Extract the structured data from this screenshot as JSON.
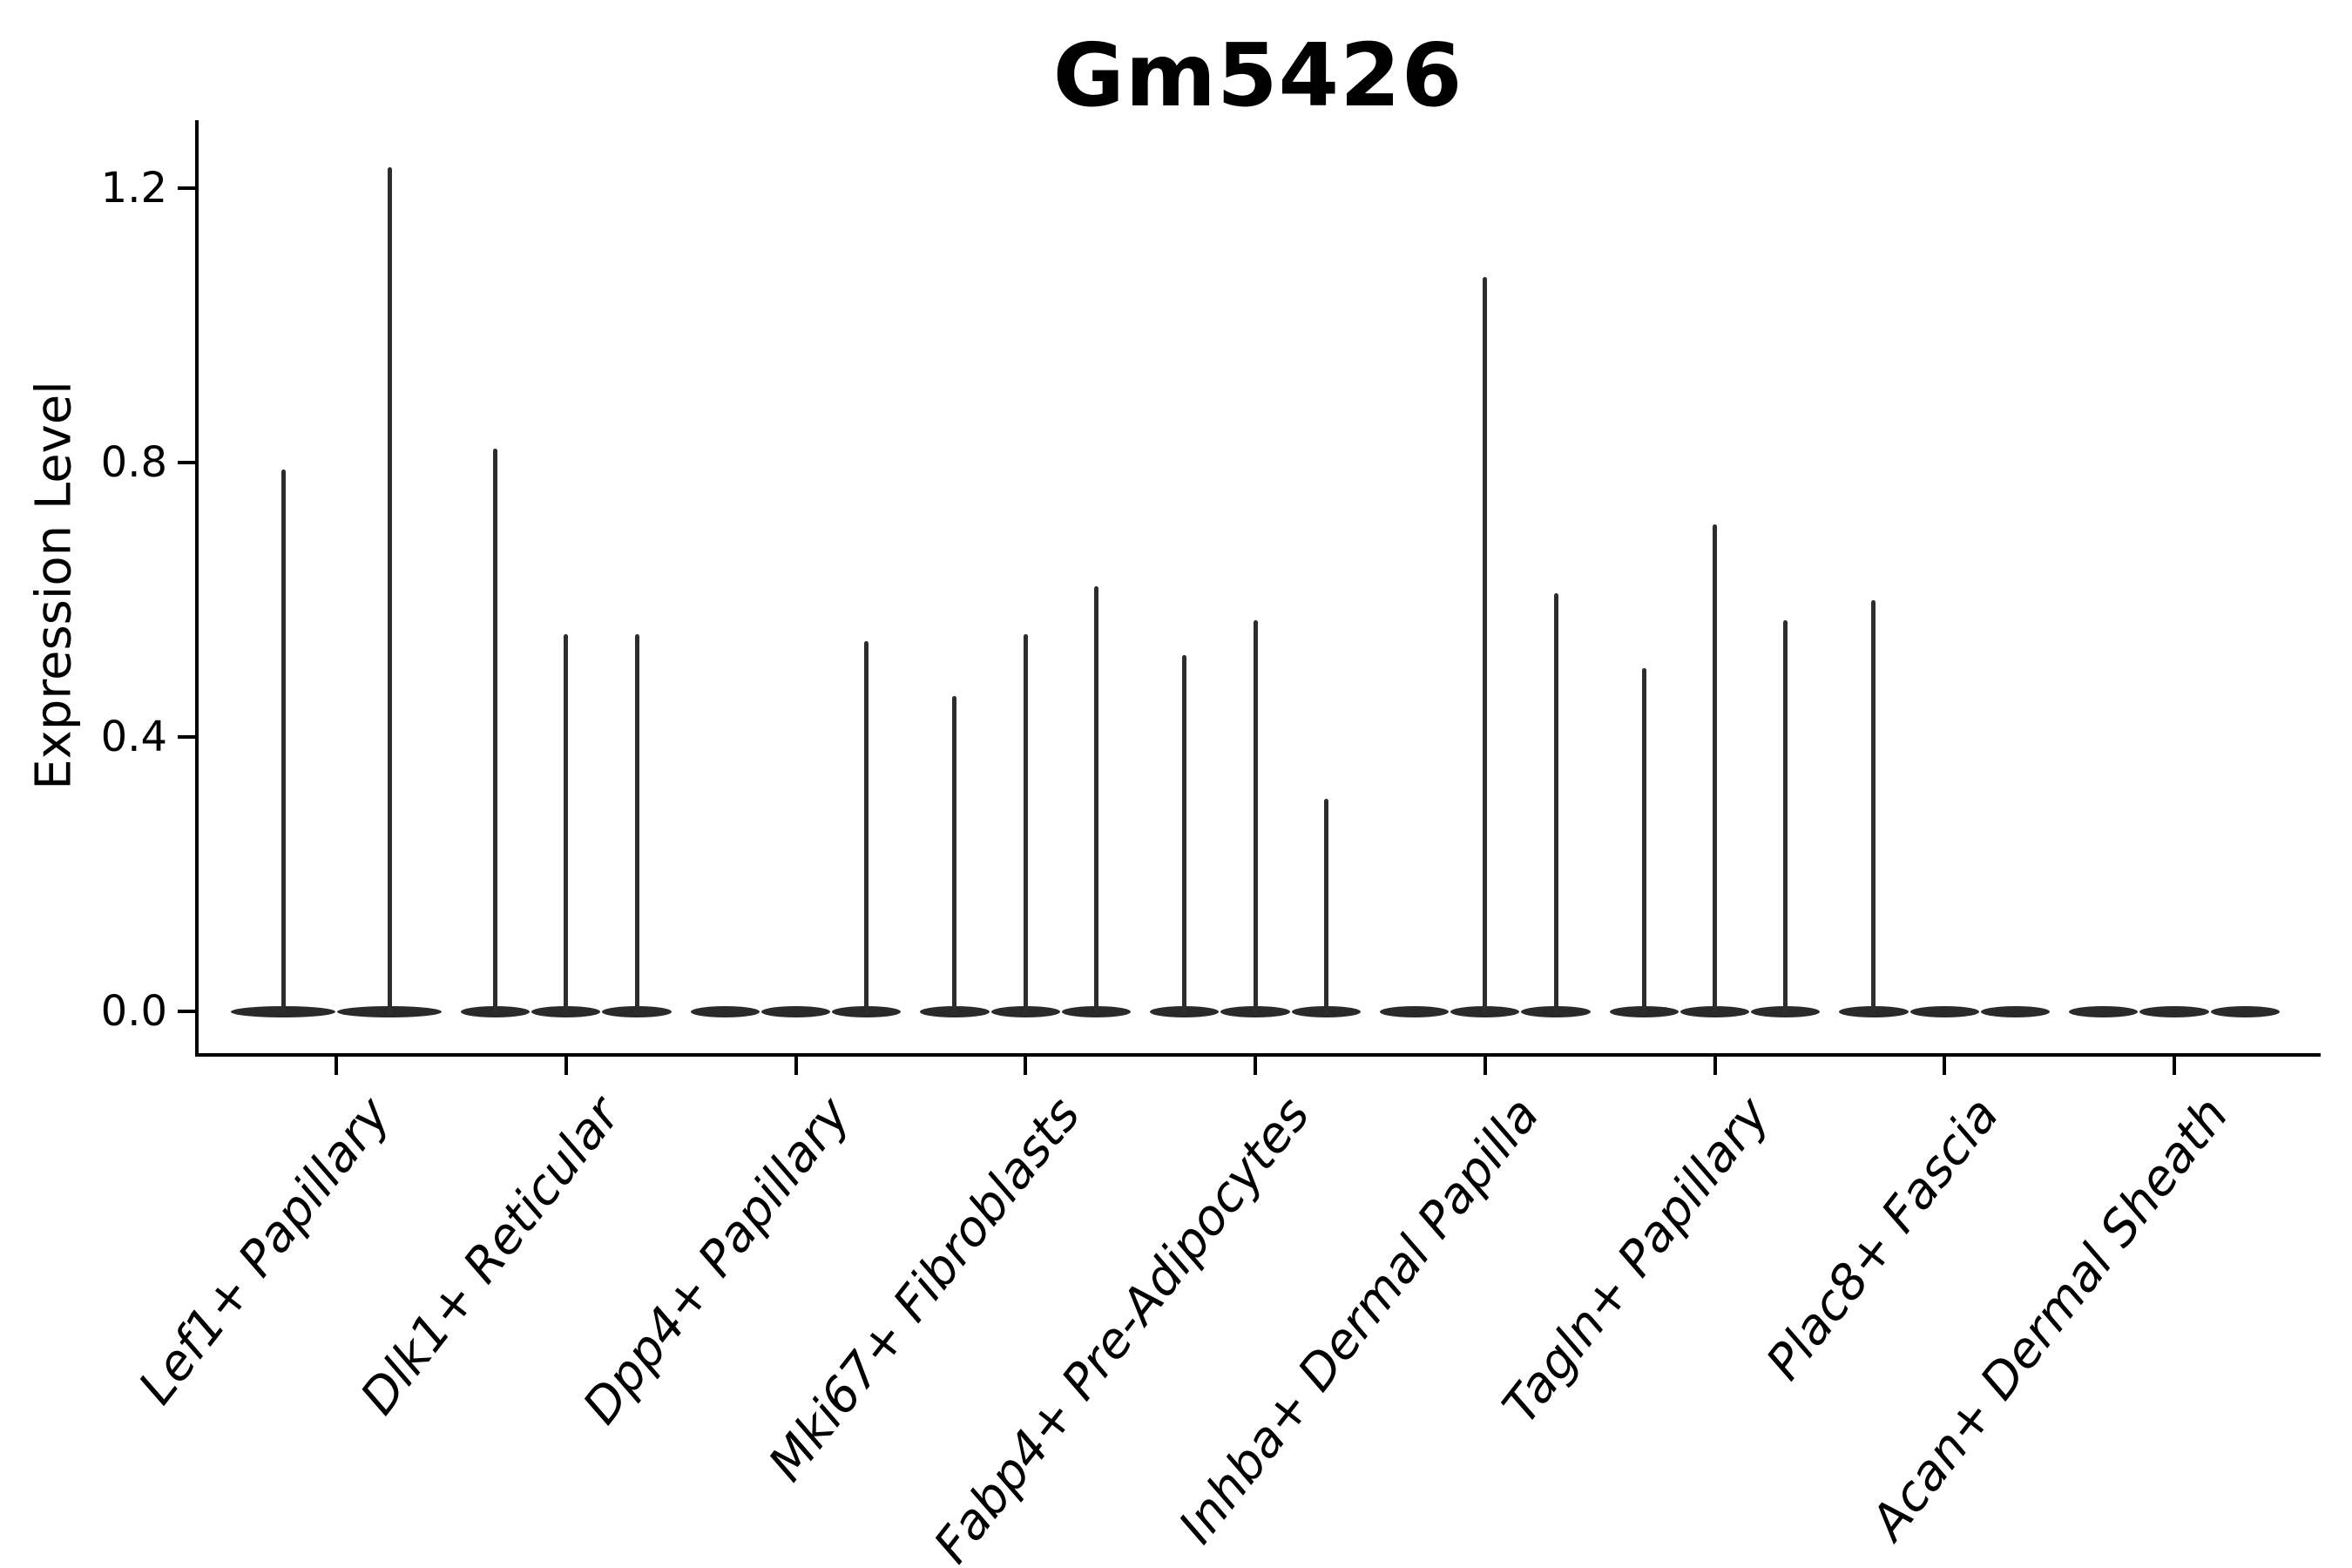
{
  "figure": {
    "title": "Gm5426"
  },
  "chart_data": {
    "type": "violin",
    "title": "Gm5426",
    "xlabel": "",
    "ylabel": "Expression Level",
    "ylim": [
      0,
      1.3
    ],
    "grid": false,
    "legend": false,
    "yticks": {
      "values": [
        0.0,
        0.4,
        0.8,
        1.2
      ],
      "labels": [
        "0.0",
        "0.4",
        "0.8",
        "1.2"
      ]
    },
    "categories": [
      "Lef1+ Papillary",
      "Dlk1+ Reticular",
      "Dpp4+ Papillary",
      "Mki67+ Fibroblasts",
      "Fabp4+ Pre-Adipocytes",
      "Inhba+ Dermal Papilla",
      "Tagln+ Papillary",
      "Plac8+ Fascia",
      "Acan+ Dermal Sheath"
    ],
    "groups": [
      {
        "category": "Lef1+ Papillary",
        "violin_maxima": [
          0.79,
          1.23
        ]
      },
      {
        "category": "Dlk1+ Reticular",
        "violin_maxima": [
          0.82,
          0.55,
          0.55
        ]
      },
      {
        "category": "Dpp4+ Papillary",
        "violin_maxima": [
          0,
          0,
          0.54
        ]
      },
      {
        "category": "Mki67+ Fibroblasts",
        "violin_maxima": [
          0.46,
          0.55,
          0.62
        ]
      },
      {
        "category": "Fabp4+ Pre-Adipocytes",
        "violin_maxima": [
          0.52,
          0.57,
          0.31
        ]
      },
      {
        "category": "Inhba+ Dermal Papilla",
        "violin_maxima": [
          0,
          1.07,
          0.61
        ]
      },
      {
        "category": "Tagln+ Papillary",
        "violin_maxima": [
          0.5,
          0.71,
          0.57
        ]
      },
      {
        "category": "Plac8+ Fascia",
        "violin_maxima": [
          0.6,
          0,
          0
        ]
      },
      {
        "category": "Acan+ Dermal Sheath",
        "violin_maxima": [
          0,
          0,
          0
        ]
      }
    ]
  }
}
